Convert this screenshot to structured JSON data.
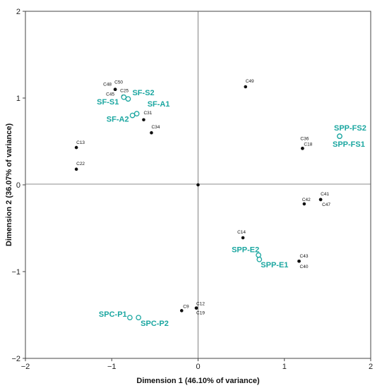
{
  "chart_data": {
    "type": "scatter",
    "title": "",
    "xlabel": "Dimension 1 (46.10% of variance)",
    "ylabel": "Dimension 2 (36.07% of variance)",
    "xlim": [
      -2,
      2
    ],
    "ylim": [
      -2,
      2
    ],
    "xticks": [
      -2,
      -1,
      0,
      1,
      2
    ],
    "yticks": [
      -2,
      -1,
      0,
      1,
      2
    ],
    "xtick_labels": [
      "−2",
      "−1",
      "0",
      "1",
      "2"
    ],
    "ytick_labels": [
      "−2",
      "−1",
      "0",
      "1",
      "2"
    ],
    "grid": false,
    "reference_lines": [
      0
    ],
    "colors": {
      "variables": "#111111",
      "groups": "#1aa6a0"
    },
    "series": [
      {
        "marker": "filled-circle",
        "points": [
          {
            "label": "C50",
            "x": -0.96,
            "y": 1.1
          },
          {
            "label": "C48",
            "x": -0.96,
            "y": 1.1
          },
          {
            "label": "C25",
            "x": -0.87,
            "y": 1.02
          },
          {
            "label": "C45",
            "x": -0.87,
            "y": 1.02
          },
          {
            "label": "C31",
            "x": -0.63,
            "y": 0.75
          },
          {
            "label": "C34",
            "x": -0.54,
            "y": 0.6
          },
          {
            "label": "C13",
            "x": -1.41,
            "y": 0.43
          },
          {
            "label": "C22",
            "x": -1.41,
            "y": 0.18
          },
          {
            "label": "C49",
            "x": 0.55,
            "y": 1.13
          },
          {
            "label": "C36",
            "x": 1.21,
            "y": 0.42
          },
          {
            "label": "C18",
            "x": 1.21,
            "y": 0.42
          },
          {
            "label": "C41",
            "x": 1.42,
            "y": -0.17
          },
          {
            "label": "C42",
            "x": 1.23,
            "y": -0.22
          },
          {
            "label": "C47",
            "x": 1.42,
            "y": -0.17
          },
          {
            "label": "C14",
            "x": 0.52,
            "y": -0.61
          },
          {
            "label": "C43",
            "x": 1.17,
            "y": -0.88
          },
          {
            "label": "C40",
            "x": 1.17,
            "y": -0.88
          },
          {
            "label": "C9",
            "x": -0.19,
            "y": -1.45
          },
          {
            "label": "C12",
            "x": -0.02,
            "y": -1.42
          },
          {
            "label": "C19",
            "x": -0.02,
            "y": -1.42
          },
          {
            "label": "",
            "x": 0.0,
            "y": 0.0
          }
        ]
      },
      {
        "marker": "open-circle",
        "points": [
          {
            "label": "SF-S1",
            "x": -0.86,
            "y": 1.01
          },
          {
            "label": "SF-S2",
            "x": -0.81,
            "y": 0.99
          },
          {
            "label": "SF-A1",
            "x": -0.71,
            "y": 0.82
          },
          {
            "label": "SF-A2",
            "x": -0.76,
            "y": 0.8
          },
          {
            "label": "SPP-FS2",
            "x": 1.64,
            "y": 0.56
          },
          {
            "label": "SPP-FS1",
            "x": 1.64,
            "y": 0.56
          },
          {
            "label": "SPP-E2",
            "x": 0.7,
            "y": -0.81
          },
          {
            "label": "SPP-E1",
            "x": 0.71,
            "y": -0.86
          },
          {
            "label": "SPC-P1",
            "x": -0.79,
            "y": -1.53
          },
          {
            "label": "SPC-P2",
            "x": -0.69,
            "y": -1.53
          }
        ]
      }
    ]
  }
}
